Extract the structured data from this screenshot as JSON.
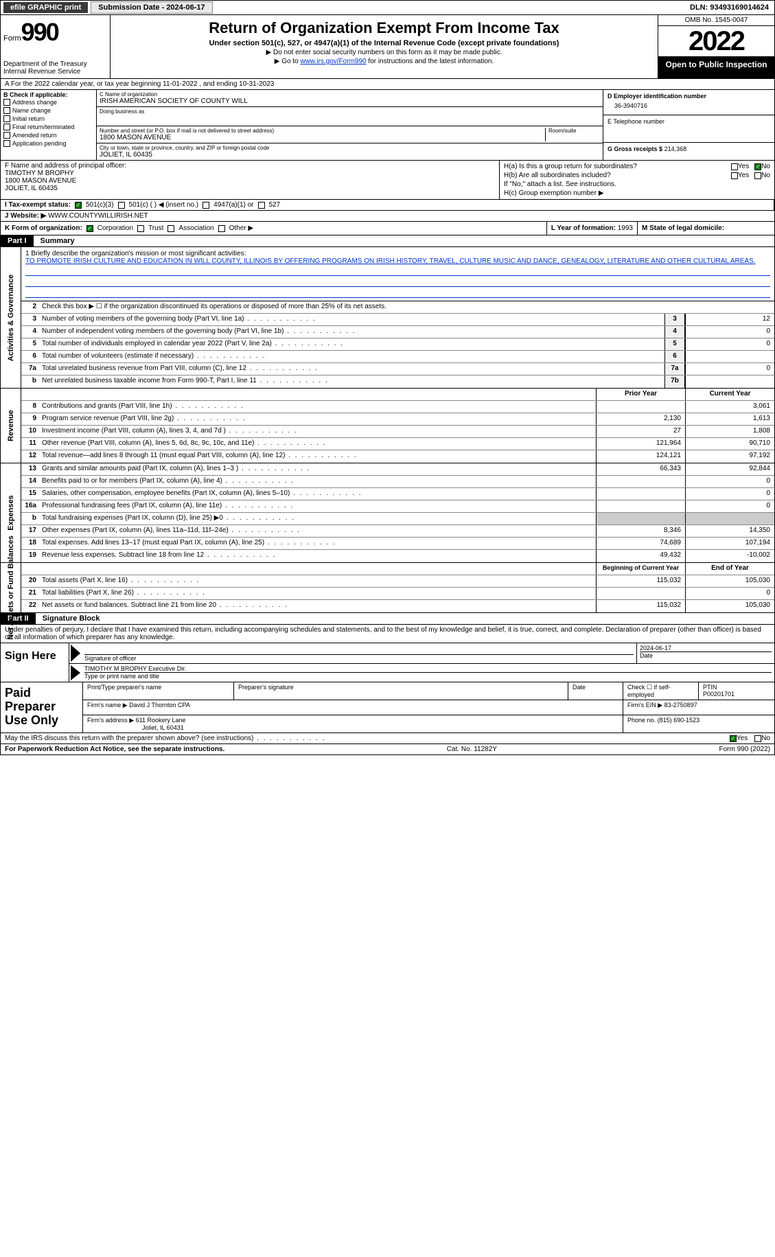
{
  "topbar": {
    "efile": "efile GRAPHIC print",
    "submission_label": "Submission Date - 2024-06-17",
    "dln": "DLN: 93493169014624"
  },
  "header": {
    "form_prefix": "Form",
    "form_number": "990",
    "dept": "Department of the Treasury",
    "irs": "Internal Revenue Service",
    "title": "Return of Organization Exempt From Income Tax",
    "sub1": "Under section 501(c), 527, or 4947(a)(1) of the Internal Revenue Code (except private foundations)",
    "sub2": "▶ Do not enter social security numbers on this form as it may be made public.",
    "sub3_prefix": "▶ Go to ",
    "sub3_link": "www.irs.gov/Form990",
    "sub3_suffix": " for instructions and the latest information.",
    "omb": "OMB No. 1545-0047",
    "year": "2022",
    "open_public": "Open to Public Inspection"
  },
  "row_a": "A For the 2022 calendar year, or tax year beginning 11-01-2022  , and ending 10-31-2023",
  "section_b": {
    "label": "B Check if applicable:",
    "items": [
      "Address change",
      "Name change",
      "Initial return",
      "Final return/terminated",
      "Amended return",
      "Application pending"
    ]
  },
  "section_c": {
    "name_label": "C Name of organization",
    "name_value": "IRISH AMERICAN SOCIETY OF COUNTY WILL",
    "dba_label": "Doing business as",
    "dba_value": "",
    "street_label": "Number and street (or P.O. box if mail is not delivered to street address)",
    "room_label": "Room/suite",
    "street_value": "1800 MASON AVENUE",
    "city_label": "City or town, state or province, country, and ZIP or foreign postal code",
    "city_value": "JOLIET, IL  60435"
  },
  "section_d": {
    "ein_label": "D Employer identification number",
    "ein_value": "36-3940716",
    "phone_label": "E Telephone number",
    "phone_value": "",
    "gross_label": "G Gross receipts $",
    "gross_value": "214,368"
  },
  "section_f": {
    "label": "F Name and address of principal officer:",
    "name": "TIMOTHY M BROPHY",
    "street": "1800 MASON AVENUE",
    "city": "JOLIET, IL  60435"
  },
  "section_h": {
    "ha_label": "H(a)  Is this a group return for subordinates?",
    "hb_label": "H(b)  Are all subordinates included?",
    "hb_note": "If \"No,\" attach a list. See instructions.",
    "hc_label": "H(c)  Group exemption number ▶",
    "yes": "Yes",
    "no": "No"
  },
  "section_i": {
    "label": "I  Tax-exempt status:",
    "opt1": "501(c)(3)",
    "opt2": "501(c) (   ) ◀ (insert no.)",
    "opt3": "4947(a)(1) or",
    "opt4": "527"
  },
  "section_j": {
    "label": "J  Website: ▶",
    "value": "WWW.COUNTYWILLIRISH.NET"
  },
  "section_k": {
    "label": "K Form of organization:",
    "opts": [
      "Corporation",
      "Trust",
      "Association",
      "Other ▶"
    ],
    "l_label": "L Year of formation:",
    "l_value": "1993",
    "m_label": "M State of legal domicile:",
    "m_value": ""
  },
  "part1": {
    "tab": "Part I",
    "title": "Summary",
    "line1_label": "1  Briefly describe the organization's mission or most significant activities:",
    "line1_text": "TO PROMOTE IRISH CULTURE AND EDUCATION IN WILL COUNTY, ILLINOIS BY OFFERING PROGRAMS ON IRISH HISTORY, TRAVEL, CULTURE MUSIC AND DANCE, GENEALOGY, LITERATURE AND OTHER CULTURAL AREAS.",
    "line2": "Check this box ▶ ☐  if the organization discontinued its operations or disposed of more than 25% of its net assets."
  },
  "governance_side": "Activities & Governance",
  "revenue_side": "Revenue",
  "expenses_side": "Expenses",
  "netassets_side": "Net Assets or Fund Balances",
  "gov_lines": [
    {
      "num": "3",
      "desc": "Number of voting members of the governing body (Part VI, line 1a)",
      "box": "3",
      "val": "12"
    },
    {
      "num": "4",
      "desc": "Number of independent voting members of the governing body (Part VI, line 1b)",
      "box": "4",
      "val": "0"
    },
    {
      "num": "5",
      "desc": "Total number of individuals employed in calendar year 2022 (Part V, line 2a)",
      "box": "5",
      "val": "0"
    },
    {
      "num": "6",
      "desc": "Total number of volunteers (estimate if necessary)",
      "box": "6",
      "val": ""
    },
    {
      "num": "7a",
      "desc": "Total unrelated business revenue from Part VIII, column (C), line 12",
      "box": "7a",
      "val": "0"
    },
    {
      "num": "b",
      "desc": "Net unrelated business taxable income from Form 990-T, Part I, line 11",
      "box": "7b",
      "val": ""
    }
  ],
  "col_headers": {
    "prior": "Prior Year",
    "current": "Current Year"
  },
  "rev_lines": [
    {
      "num": "8",
      "desc": "Contributions and grants (Part VIII, line 1h)",
      "prior": "",
      "current": "3,061"
    },
    {
      "num": "9",
      "desc": "Program service revenue (Part VIII, line 2g)",
      "prior": "2,130",
      "current": "1,613"
    },
    {
      "num": "10",
      "desc": "Investment income (Part VIII, column (A), lines 3, 4, and 7d )",
      "prior": "27",
      "current": "1,808"
    },
    {
      "num": "11",
      "desc": "Other revenue (Part VIII, column (A), lines 5, 6d, 8c, 9c, 10c, and 11e)",
      "prior": "121,964",
      "current": "90,710"
    },
    {
      "num": "12",
      "desc": "Total revenue—add lines 8 through 11 (must equal Part VIII, column (A), line 12)",
      "prior": "124,121",
      "current": "97,192"
    }
  ],
  "exp_lines": [
    {
      "num": "13",
      "desc": "Grants and similar amounts paid (Part IX, column (A), lines 1–3 )",
      "prior": "66,343",
      "current": "92,844"
    },
    {
      "num": "14",
      "desc": "Benefits paid to or for members (Part IX, column (A), line 4)",
      "prior": "",
      "current": "0"
    },
    {
      "num": "15",
      "desc": "Salaries, other compensation, employee benefits (Part IX, column (A), lines 5–10)",
      "prior": "",
      "current": "0"
    },
    {
      "num": "16a",
      "desc": "Professional fundraising fees (Part IX, column (A), line 11e)",
      "prior": "",
      "current": "0"
    },
    {
      "num": "b",
      "desc": "Total fundraising expenses (Part IX, column (D), line 25) ▶0",
      "prior": "shaded",
      "current": "shaded"
    },
    {
      "num": "17",
      "desc": "Other expenses (Part IX, column (A), lines 11a–11d, 11f–24e)",
      "prior": "8,346",
      "current": "14,350"
    },
    {
      "num": "18",
      "desc": "Total expenses. Add lines 13–17 (must equal Part IX, column (A), line 25)",
      "prior": "74,689",
      "current": "107,194"
    },
    {
      "num": "19",
      "desc": "Revenue less expenses. Subtract line 18 from line 12",
      "prior": "49,432",
      "current": "-10,002"
    }
  ],
  "net_headers": {
    "begin": "Beginning of Current Year",
    "end": "End of Year"
  },
  "net_lines": [
    {
      "num": "20",
      "desc": "Total assets (Part X, line 16)",
      "prior": "115,032",
      "current": "105,030"
    },
    {
      "num": "21",
      "desc": "Total liabilities (Part X, line 26)",
      "prior": "",
      "current": "0"
    },
    {
      "num": "22",
      "desc": "Net assets or fund balances. Subtract line 21 from line 20",
      "prior": "115,032",
      "current": "105,030"
    }
  ],
  "part2": {
    "tab": "Part II",
    "title": "Signature Block",
    "intro": "Under penalties of perjury, I declare that I have examined this return, including accompanying schedules and statements, and to the best of my knowledge and belief, it is true, correct, and complete. Declaration of preparer (other than officer) is based on all information of which preparer has any knowledge."
  },
  "sign": {
    "left": "Sign Here",
    "sig_label": "Signature of officer",
    "date_label": "Date",
    "date_value": "2024-06-17",
    "name_label": "Type or print name and title",
    "name_value": "TIMOTHY M BROPHY  Executive Dir."
  },
  "prep": {
    "left": "Paid Preparer Use Only",
    "h1": "Print/Type preparer's name",
    "h2": "Preparer's signature",
    "h3": "Date",
    "h4": "Check ☐ if self-employed",
    "h5_label": "PTIN",
    "h5_value": "P00201701",
    "firm_name_label": "Firm's name   ▶",
    "firm_name": "David J Thornton CPA",
    "firm_ein_label": "Firm's EIN ▶",
    "firm_ein": "83-2750897",
    "firm_addr_label": "Firm's address ▶",
    "firm_addr1": "611 Rookery Lane",
    "firm_addr2": "Joliet, IL  60431",
    "phone_label": "Phone no.",
    "phone": "(815) 690-1523"
  },
  "footer_q": {
    "text": "May the IRS discuss this return with the preparer shown above? (see instructions)",
    "yes": "Yes",
    "no": "No"
  },
  "footer": {
    "left": "For Paperwork Reduction Act Notice, see the separate instructions.",
    "mid": "Cat. No. 11282Y",
    "right": "Form 990 (2022)"
  },
  "colors": {
    "link": "#0033cc",
    "shaded": "#cccccc",
    "dark_btn": "#3a3a3a",
    "check_green": "#008000"
  }
}
